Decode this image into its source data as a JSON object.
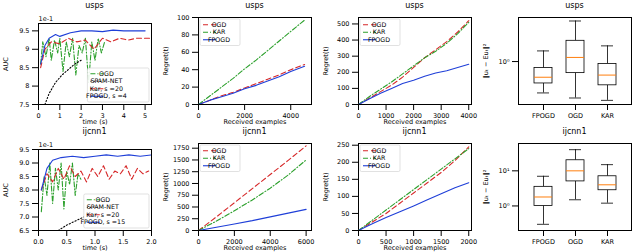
{
  "chart_data": [
    {
      "type": "line",
      "title": "usps",
      "xlabel": "time (s)",
      "ylabel": "AUC",
      "annotations": [
        "1e-1"
      ],
      "xlim": [
        0,
        5.3
      ],
      "ylim": [
        7.5,
        9.7
      ],
      "xticks": [
        0,
        1,
        2,
        3,
        4,
        5
      ],
      "yticks": [
        7.5,
        8.0,
        8.5,
        9.0,
        9.5
      ],
      "grid": false,
      "legend": "lower right",
      "series": [
        {
          "name": "OGD",
          "color": "#2ca02c",
          "line_style": "dashdot",
          "x": [
            0.1,
            0.2,
            0.35,
            0.5,
            0.6,
            0.75,
            0.9,
            1.0,
            1.15,
            1.3,
            1.45,
            1.6,
            1.75,
            1.9,
            2.05,
            2.2,
            2.35,
            2.5,
            2.65,
            2.8,
            2.95,
            3.1
          ],
          "values": [
            8.6,
            9.2,
            8.8,
            9.3,
            8.7,
            9.25,
            8.9,
            9.3,
            8.4,
            9.2,
            8.8,
            9.3,
            8.3,
            9.1,
            8.9,
            9.3,
            8.1,
            9.2,
            8.7,
            9.3,
            8.9,
            9.2
          ]
        },
        {
          "name": "SPAM-NET",
          "color": "#000000",
          "line_style": "dotted",
          "x": [
            0.3,
            0.5,
            0.8,
            1.1,
            1.4,
            1.7,
            2.0
          ],
          "values": [
            7.5,
            7.8,
            8.1,
            8.3,
            8.45,
            8.6,
            8.7
          ]
        },
        {
          "name": "Kar, s =20",
          "color": "#d62728",
          "line_style": "dashed",
          "x": [
            0.1,
            0.3,
            0.6,
            1.0,
            1.4,
            1.8,
            2.2,
            2.6,
            3.0,
            3.4,
            3.8,
            4.2,
            4.6,
            5.0,
            5.3
          ],
          "values": [
            8.5,
            9.0,
            9.2,
            9.15,
            9.3,
            9.2,
            9.25,
            9.0,
            9.3,
            9.2,
            9.3,
            9.25,
            9.3,
            9.3,
            9.3
          ]
        },
        {
          "name": "FPOGD, s =4",
          "color": "#1f3fd8",
          "line_style": "solid",
          "x": [
            0.1,
            0.3,
            0.5,
            0.8,
            1.0,
            1.5,
            2.0,
            2.5,
            3.0,
            3.5,
            4.0,
            4.5,
            5.0
          ],
          "values": [
            8.6,
            9.1,
            9.3,
            9.4,
            9.35,
            9.45,
            9.5,
            9.5,
            9.48,
            9.52,
            9.5,
            9.5,
            9.5
          ]
        }
      ]
    },
    {
      "type": "line",
      "title": "usps",
      "xlabel": "Received examples",
      "ylabel": "Regret(t)",
      "xlim": [
        0,
        4900
      ],
      "ylim": [
        0,
        100
      ],
      "xticks": [
        0,
        2000,
        4000
      ],
      "yticks": [
        0,
        20,
        40,
        60,
        80,
        100
      ],
      "grid": false,
      "legend": "upper left",
      "series": [
        {
          "name": "OGD",
          "color": "#d62728",
          "line_style": "dashed",
          "x": [
            0,
            500,
            1000,
            1500,
            2000,
            2500,
            3000,
            3500,
            4000,
            4600
          ],
          "values": [
            0,
            5,
            10,
            14,
            19,
            24,
            29,
            34,
            40,
            46
          ]
        },
        {
          "name": "KAR",
          "color": "#2ca02c",
          "line_style": "dashdot",
          "x": [
            0,
            500,
            1000,
            1500,
            2000,
            2500,
            3000,
            3500,
            4000,
            4600
          ],
          "values": [
            0,
            10,
            20,
            30,
            41,
            51,
            62,
            73,
            84,
            97
          ]
        },
        {
          "name": "FPOGD",
          "color": "#1f3fd8",
          "line_style": "solid",
          "x": [
            0,
            500,
            1000,
            1500,
            2000,
            2500,
            3000,
            3500,
            4000,
            4600
          ],
          "values": [
            0,
            5,
            9,
            13,
            18,
            22,
            27,
            32,
            38,
            44
          ]
        }
      ]
    },
    {
      "type": "line",
      "title": "usps",
      "xlabel": "Received examples",
      "ylabel": "Regret(t)",
      "xlim": [
        0,
        4100
      ],
      "ylim": [
        0,
        540
      ],
      "xticks": [
        0,
        1000,
        2000,
        3000,
        4000
      ],
      "yticks": [
        0,
        100,
        200,
        300,
        400,
        500
      ],
      "grid": false,
      "legend": "upper left",
      "series": [
        {
          "name": "OGD",
          "color": "#d62728",
          "line_style": "dashed",
          "x": [
            0,
            400,
            800,
            1200,
            1600,
            2000,
            2400,
            2800,
            3200,
            3600,
            4000
          ],
          "values": [
            0,
            40,
            80,
            120,
            170,
            230,
            290,
            340,
            390,
            450,
            520
          ]
        },
        {
          "name": "KAR",
          "color": "#2ca02c",
          "line_style": "dashdot",
          "x": [
            0,
            400,
            800,
            1200,
            1600,
            2000,
            2400,
            2800,
            3200,
            3600,
            4000
          ],
          "values": [
            0,
            50,
            95,
            140,
            190,
            240,
            290,
            330,
            380,
            440,
            510
          ]
        },
        {
          "name": "FPOGD",
          "color": "#1f3fd8",
          "line_style": "solid",
          "x": [
            0,
            400,
            800,
            1200,
            1600,
            2000,
            2400,
            2800,
            3200,
            3600,
            4000
          ],
          "values": [
            0,
            35,
            70,
            100,
            130,
            150,
            175,
            195,
            210,
            230,
            250
          ]
        }
      ]
    },
    {
      "type": "box",
      "title": "usps",
      "ylabel": "‖uₜ − Euₜ‖²",
      "log": "y",
      "color": "#ff7f0e",
      "ylim": [
        0.15,
        7
      ],
      "yticks": [
        {
          "value": 1,
          "label": "10⁰"
        }
      ],
      "grid": false,
      "categories": [
        "FPOGD",
        "OGD",
        "KAR"
      ],
      "whisker_low": [
        0.25,
        0.2,
        0.18
      ],
      "q1": [
        0.38,
        0.6,
        0.35
      ],
      "median": [
        0.5,
        1.2,
        0.55
      ],
      "q3": [
        0.75,
        2.5,
        0.9
      ],
      "whisker_high": [
        1.6,
        6,
        2.0
      ]
    },
    {
      "type": "line",
      "title": "ijcnn1",
      "xlabel": "time (s)",
      "ylabel": "AUC",
      "annotations": [
        "1e-1"
      ],
      "xlim": [
        0,
        2.0
      ],
      "ylim": [
        6.5,
        9.5
      ],
      "xticks": [
        {
          "value": 0,
          "label": "0.0"
        },
        0.5,
        {
          "value": 1,
          "label": "1.0"
        },
        1.5,
        {
          "value": 2,
          "label": "2.0"
        }
      ],
      "yticks": [
        6.5,
        {
          "value": 7,
          "label": "7.0"
        },
        7.5,
        {
          "value": 8,
          "label": "8.0"
        },
        8.5,
        {
          "value": 9,
          "label": "9.0"
        },
        9.5
      ],
      "grid": false,
      "legend": "lower right",
      "series": [
        {
          "name": "OGD",
          "color": "#2ca02c",
          "line_style": "dashdot",
          "x": [
            0.05,
            0.1,
            0.15,
            0.2,
            0.25,
            0.3,
            0.35,
            0.4,
            0.45,
            0.5,
            0.55,
            0.6,
            0.65,
            0.7,
            0.75
          ],
          "values": [
            7.2,
            8.5,
            7.8,
            9.0,
            7.5,
            8.8,
            8.0,
            9.0,
            7.3,
            8.7,
            8.2,
            9.0,
            7.8,
            8.6,
            8.4
          ]
        },
        {
          "name": "SPAM-NET",
          "color": "#000000",
          "line_style": "dotted",
          "x": [
            0.35,
            0.5,
            0.65,
            0.8
          ],
          "values": [
            6.5,
            6.7,
            6.85,
            7.0
          ]
        },
        {
          "name": "Kar, s =20",
          "color": "#d62728",
          "line_style": "dashed",
          "x": [
            0.05,
            0.15,
            0.25,
            0.35,
            0.45,
            0.55,
            0.65,
            0.75,
            0.85,
            0.95,
            1.05,
            1.15,
            1.25,
            1.35,
            1.45,
            1.55,
            1.65,
            1.75,
            1.85,
            1.95
          ],
          "values": [
            8.0,
            8.6,
            8.3,
            8.8,
            8.4,
            8.9,
            8.5,
            8.7,
            8.3,
            8.8,
            8.5,
            8.9,
            8.4,
            8.7,
            8.6,
            8.9,
            8.4,
            8.8,
            8.6,
            8.7
          ]
        },
        {
          "name": "FPOGD, s =15",
          "color": "#1f3fd8",
          "line_style": "solid",
          "x": [
            0.05,
            0.15,
            0.25,
            0.4,
            0.6,
            0.8,
            1.0,
            1.2,
            1.4,
            1.6,
            1.8,
            2.0
          ],
          "values": [
            8.0,
            8.8,
            9.1,
            9.2,
            9.25,
            9.2,
            9.25,
            9.3,
            9.25,
            9.3,
            9.25,
            9.3
          ]
        }
      ]
    },
    {
      "type": "line",
      "title": "ijcnn1",
      "xlabel": "Received examples",
      "ylabel": "Regret(t)",
      "xlim": [
        0,
        6300
      ],
      "ylim": [
        0,
        1850
      ],
      "xticks": [
        0,
        2000,
        4000,
        6000
      ],
      "yticks": [
        0,
        250,
        500,
        750,
        1000,
        1250,
        1500,
        1750
      ],
      "grid": false,
      "legend": "upper left",
      "series": [
        {
          "name": "OGD",
          "color": "#d62728",
          "line_style": "dashed",
          "x": [
            0,
            1000,
            2000,
            3000,
            4000,
            5000,
            6000
          ],
          "values": [
            0,
            290,
            590,
            890,
            1190,
            1490,
            1800
          ]
        },
        {
          "name": "KAR",
          "color": "#2ca02c",
          "line_style": "dashdot",
          "x": [
            0,
            1000,
            2000,
            3000,
            4000,
            5000,
            6000
          ],
          "values": [
            0,
            200,
            420,
            650,
            900,
            1180,
            1500
          ]
        },
        {
          "name": "FPOGD",
          "color": "#1f3fd8",
          "line_style": "solid",
          "x": [
            0,
            1000,
            2000,
            3000,
            4000,
            5000,
            6000
          ],
          "values": [
            0,
            70,
            140,
            210,
            290,
            370,
            450
          ]
        }
      ]
    },
    {
      "type": "line",
      "title": "ijcnn1",
      "xlabel": "Received examples",
      "ylabel": "Regret(t)",
      "xlim": [
        0,
        2050
      ],
      "ylim": [
        0,
        255
      ],
      "xticks": [
        0,
        500,
        1000,
        1500,
        2000
      ],
      "yticks": [
        0,
        50,
        100,
        150,
        200,
        250
      ],
      "grid": false,
      "legend": "upper left",
      "series": [
        {
          "name": "OGD",
          "color": "#d62728",
          "line_style": "dashed",
          "x": [
            0,
            250,
            500,
            750,
            1000,
            1250,
            1500,
            1750,
            2000
          ],
          "values": [
            0,
            25,
            50,
            80,
            110,
            140,
            170,
            205,
            245
          ]
        },
        {
          "name": "KAR",
          "color": "#2ca02c",
          "line_style": "dashdot",
          "x": [
            0,
            250,
            500,
            750,
            1000,
            1250,
            1500,
            1750,
            2000
          ],
          "values": [
            0,
            30,
            60,
            90,
            120,
            150,
            180,
            210,
            240
          ]
        },
        {
          "name": "FPOGD",
          "color": "#1f3fd8",
          "line_style": "solid",
          "x": [
            0,
            250,
            500,
            750,
            1000,
            1250,
            1500,
            1750,
            2000
          ],
          "values": [
            0,
            20,
            38,
            55,
            72,
            90,
            108,
            125,
            140
          ]
        }
      ]
    },
    {
      "type": "box",
      "title": "ijcnn1",
      "ylabel": "‖uₜ − Euₜ‖²",
      "log": "y",
      "color": "#ff7f0e",
      "ylim": [
        0.2,
        60
      ],
      "yticks": [
        {
          "value": 1,
          "label": "10⁰"
        },
        {
          "value": 10,
          "label": "10¹"
        }
      ],
      "grid": false,
      "categories": [
        "FPOGD",
        "OGD",
        "KAR"
      ],
      "whisker_low": [
        0.3,
        1.5,
        1.2
      ],
      "q1": [
        1.0,
        5,
        2.8
      ],
      "median": [
        1.8,
        10,
        4
      ],
      "q3": [
        3.5,
        20,
        7
      ],
      "whisker_high": [
        7,
        40,
        15
      ]
    }
  ]
}
